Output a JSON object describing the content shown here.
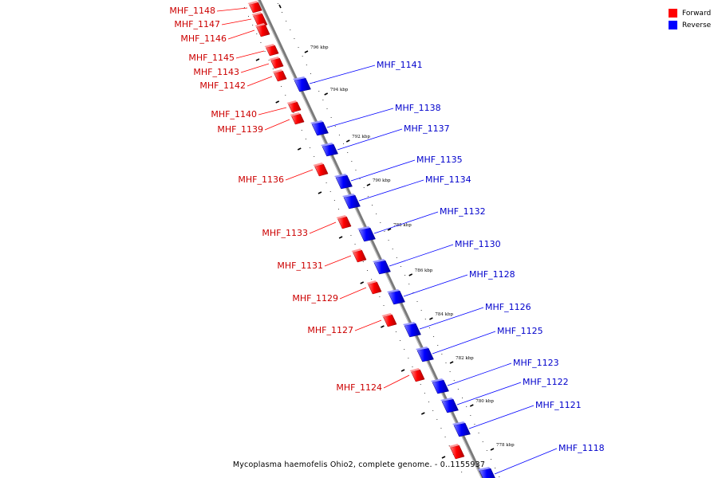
{
  "legend": {
    "forward_label": "Forward",
    "reverse_label": "Reverse",
    "forward_color": "#ff0000",
    "reverse_color": "#0000ff"
  },
  "caption": "Mycoplasma haemofelis Ohio2, complete genome. - 0..1155937",
  "scale_labels": [
    "796 kbp",
    "794 kbp",
    "792 kbp",
    "790 kbp",
    "788 kbp",
    "786 kbp",
    "784 kbp",
    "782 kbp",
    "780 kbp",
    "778 kbp"
  ],
  "forward_genes": [
    "MHF_1148",
    "MHF_1147",
    "MHF_1146",
    "MHF_1145",
    "MHF_1143",
    "MHF_1142",
    "MHF_1140",
    "MHF_1139",
    "MHF_1136",
    "MHF_1133",
    "MHF_1131",
    "MHF_1129",
    "MHF_1127",
    "MHF_1124"
  ],
  "reverse_genes": [
    "MHF_1141",
    "MHF_1138",
    "MHF_1137",
    "MHF_1135",
    "MHF_1134",
    "MHF_1132",
    "MHF_1130",
    "MHF_1128",
    "MHF_1126",
    "MHF_1125",
    "MHF_1123",
    "MHF_1122",
    "MHF_1121",
    "MHF_1118"
  ]
}
